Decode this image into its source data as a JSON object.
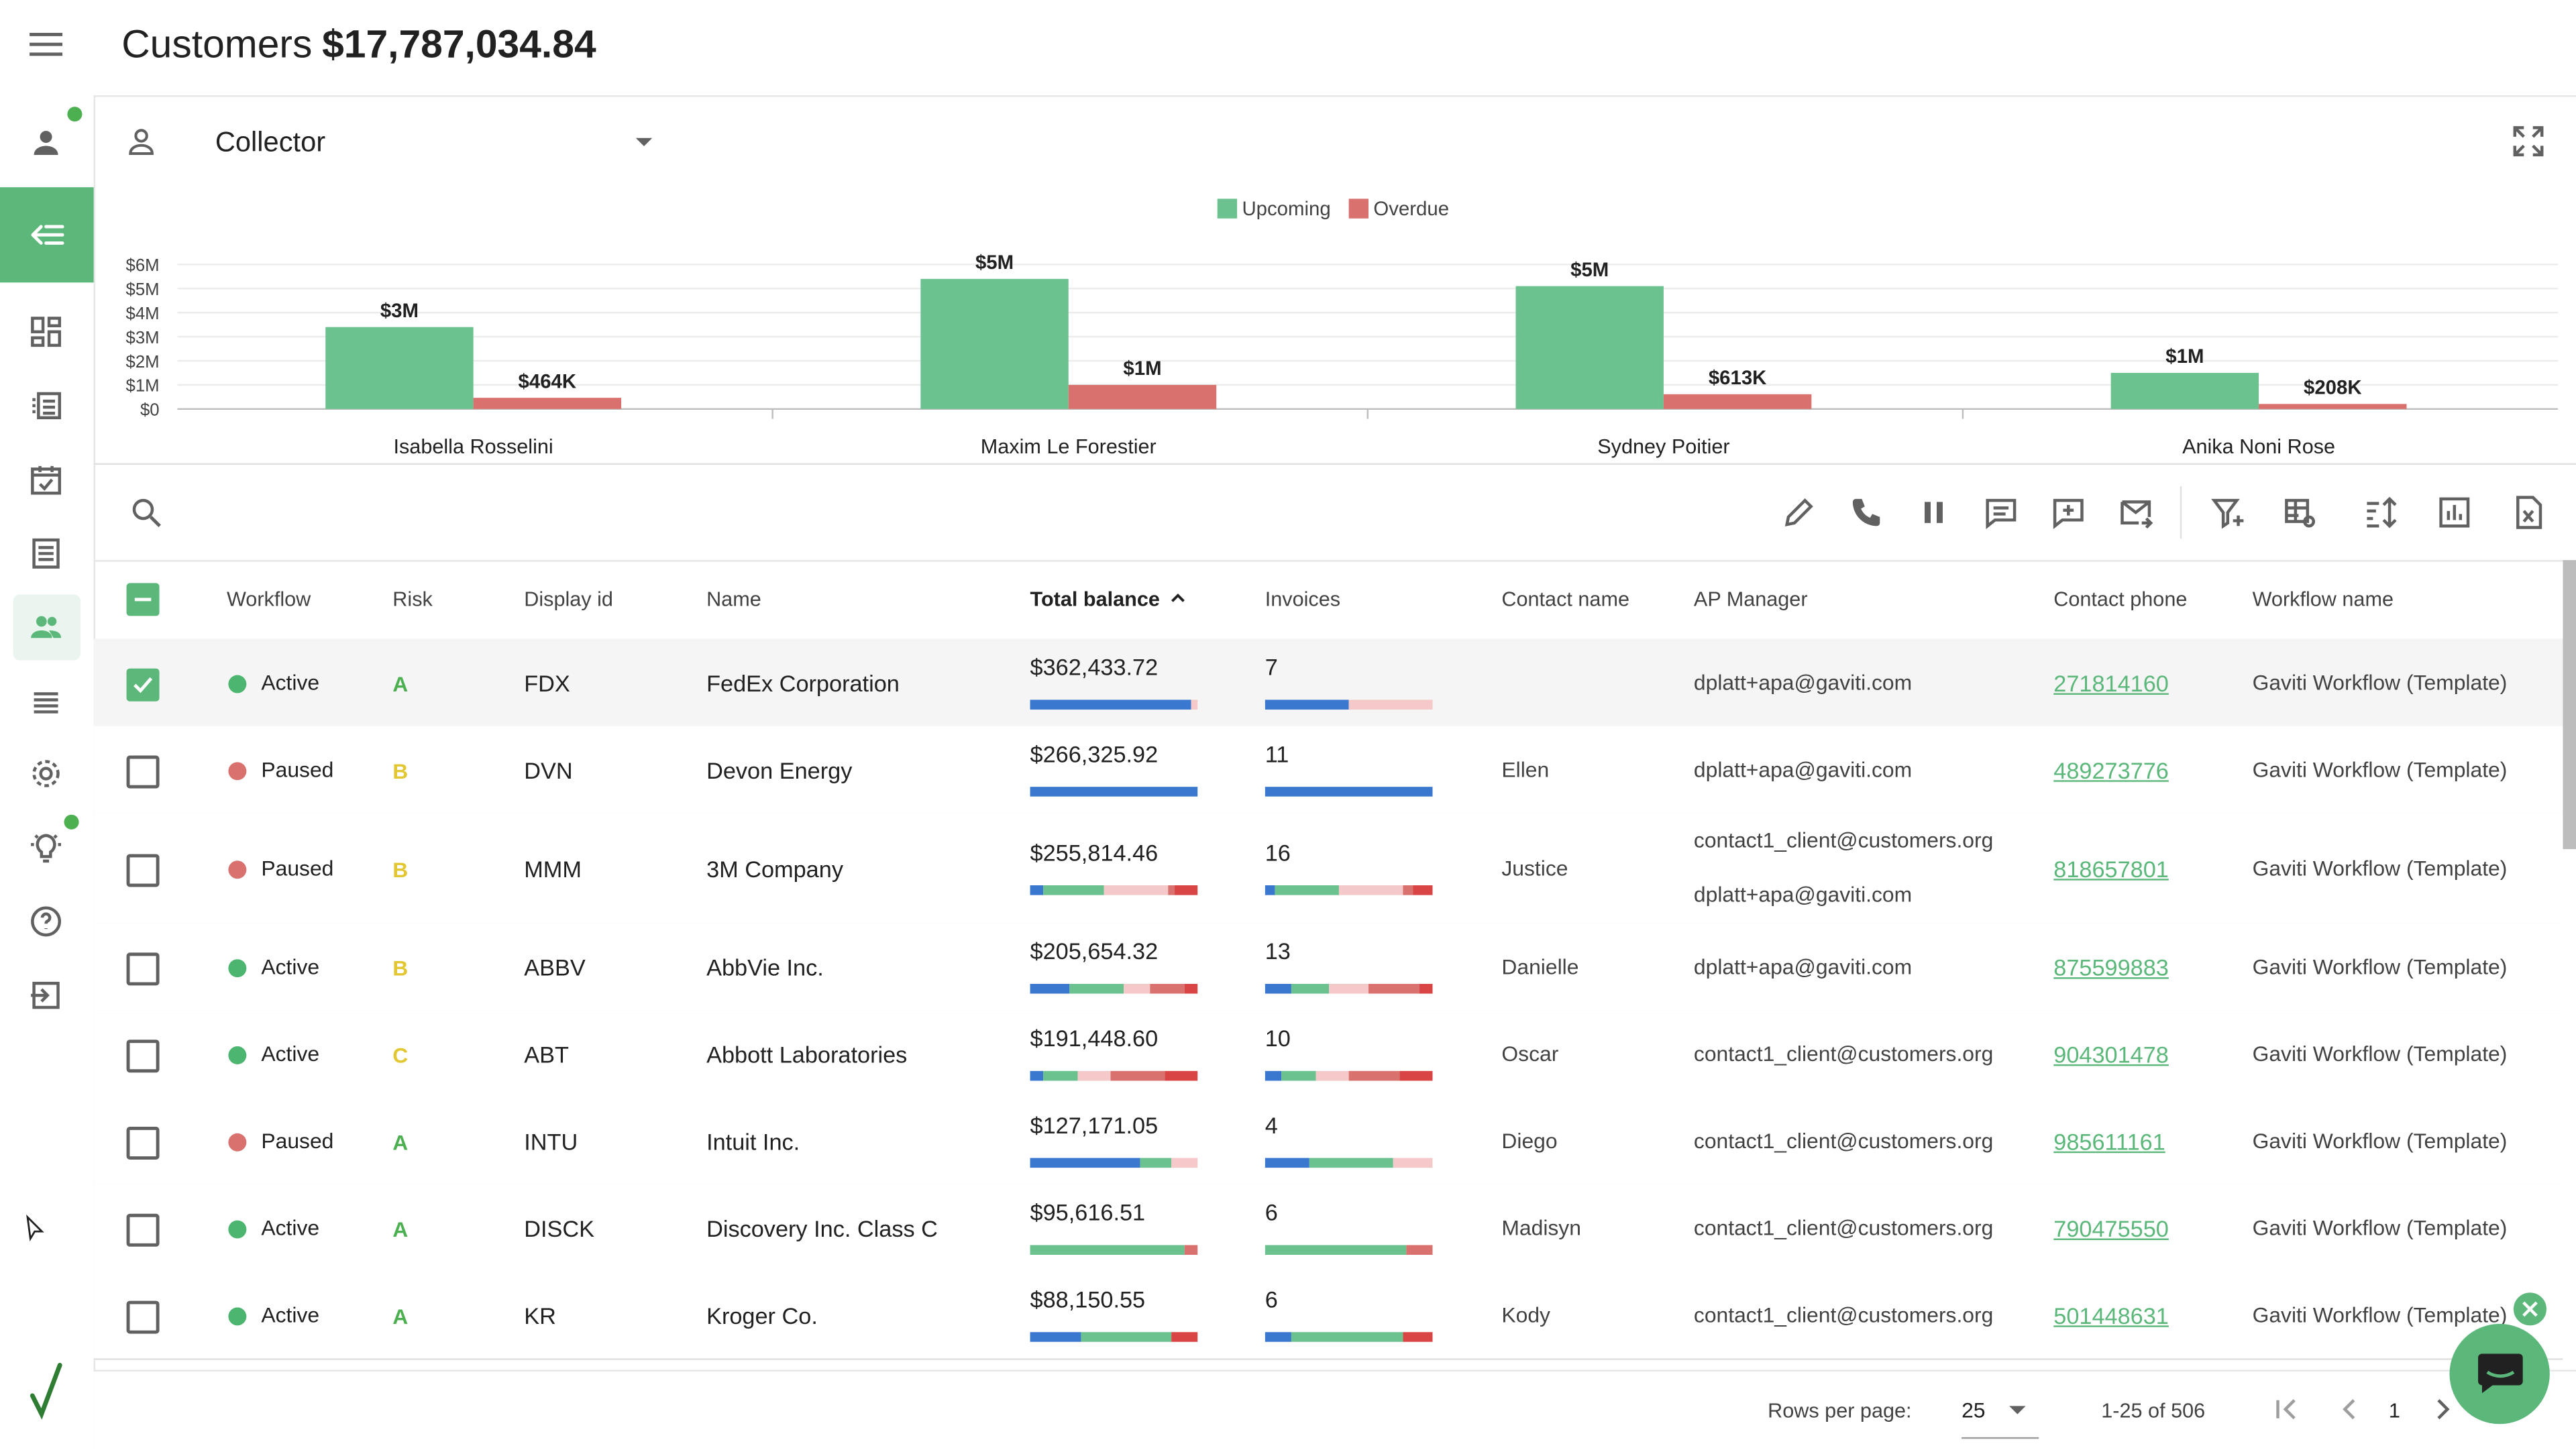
{
  "header": {
    "title": "Customers",
    "total": "$17,787,034.84"
  },
  "colors": {
    "accent": "#5cb87a",
    "upcoming": "#6cc28f",
    "overdue": "#d9726e",
    "blue": "#3a78d0",
    "red": "#d94545",
    "pink": "#f5c9c9",
    "yellow": "#e2c733"
  },
  "collector": {
    "label": "Collector"
  },
  "chart_data": {
    "type": "bar",
    "categories": [
      "Isabella Rosselini",
      "Maxim Le Forestier",
      "Sydney Poitier",
      "Anika Noni Rose"
    ],
    "series": [
      {
        "name": "Upcoming",
        "values": [
          3400000,
          5400000,
          5100000,
          1500000
        ],
        "labels": [
          "$3M",
          "$5M",
          "$5M",
          "$1M"
        ]
      },
      {
        "name": "Overdue",
        "values": [
          464000,
          1000000,
          613000,
          208000
        ],
        "labels": [
          "$464K",
          "$1M",
          "$613K",
          "$208K"
        ]
      }
    ],
    "yticks": [
      "$0",
      "$1M",
      "$2M",
      "$3M",
      "$4M",
      "$5M",
      "$6M"
    ],
    "ylim": [
      0,
      6000000
    ],
    "legend": "top-center",
    "grid": true
  },
  "table": {
    "columns": {
      "workflow": "Workflow",
      "risk": "Risk",
      "display_id": "Display id",
      "name": "Name",
      "total_balance": "Total balance",
      "invoices": "Invoices",
      "contact_name": "Contact name",
      "ap_manager": "AP Manager",
      "contact_phone": "Contact phone",
      "workflow_name": "Workflow name"
    },
    "rows": [
      {
        "checked": true,
        "workflow": "Active",
        "wf_color": "#4cb56f",
        "risk": "A",
        "risk_color": "#4caf50",
        "id": "FDX",
        "name": "FedEx Corporation",
        "balance": "$362,433.72",
        "bal_bar": [
          [
            "blue",
            96
          ],
          [
            "pink",
            4
          ]
        ],
        "invoices": "7",
        "inv_bar": [
          [
            "blue",
            50
          ],
          [
            "pink",
            50
          ]
        ],
        "contact": "",
        "ap": [
          "dplatt+apa@gaviti.com"
        ],
        "phone": "271814160",
        "wfname": "Gaviti Workflow (Template)"
      },
      {
        "checked": false,
        "workflow": "Paused",
        "wf_color": "#d9726e",
        "risk": "B",
        "risk_color": "#e2c733",
        "id": "DVN",
        "name": "Devon Energy",
        "balance": "$266,325.92",
        "bal_bar": [
          [
            "blue",
            100
          ]
        ],
        "invoices": "11",
        "inv_bar": [
          [
            "blue",
            100
          ]
        ],
        "contact": "Ellen",
        "ap": [
          "dplatt+apa@gaviti.com"
        ],
        "phone": "489273776",
        "wfname": "Gaviti Workflow (Template)"
      },
      {
        "checked": false,
        "workflow": "Paused",
        "wf_color": "#d9726e",
        "risk": "B",
        "risk_color": "#e2c733",
        "id": "MMM",
        "name": "3M Company",
        "balance": "$255,814.46",
        "bal_bar": [
          [
            "blue",
            8
          ],
          [
            "green",
            36
          ],
          [
            "pink",
            38
          ],
          [
            "rose",
            4
          ],
          [
            "red",
            14
          ]
        ],
        "invoices": "16",
        "inv_bar": [
          [
            "blue",
            6
          ],
          [
            "green",
            38
          ],
          [
            "pink",
            38
          ],
          [
            "rose",
            6
          ],
          [
            "red",
            12
          ]
        ],
        "contact": "Justice",
        "ap": [
          "contact1_client@customers.org",
          "dplatt+apa@gaviti.com"
        ],
        "phone": "818657801",
        "wfname": "Gaviti Workflow (Template)"
      },
      {
        "checked": false,
        "workflow": "Active",
        "wf_color": "#4cb56f",
        "risk": "B",
        "risk_color": "#e2c733",
        "id": "ABBV",
        "name": "AbbVie Inc.",
        "balance": "$205,654.32",
        "bal_bar": [
          [
            "blue",
            24
          ],
          [
            "green",
            32
          ],
          [
            "pink",
            16
          ],
          [
            "rose",
            20
          ],
          [
            "red",
            8
          ]
        ],
        "invoices": "13",
        "inv_bar": [
          [
            "blue",
            16
          ],
          [
            "green",
            22
          ],
          [
            "pink",
            24
          ],
          [
            "rose",
            30
          ],
          [
            "red",
            8
          ]
        ],
        "contact": "Danielle",
        "ap": [
          "dplatt+apa@gaviti.com"
        ],
        "phone": "875599883",
        "wfname": "Gaviti Workflow (Template)"
      },
      {
        "checked": false,
        "workflow": "Active",
        "wf_color": "#4cb56f",
        "risk": "C",
        "risk_color": "#e2c733",
        "id": "ABT",
        "name": "Abbott Laboratories",
        "balance": "$191,448.60",
        "bal_bar": [
          [
            "blue",
            8
          ],
          [
            "green",
            20
          ],
          [
            "pink",
            20
          ],
          [
            "rose",
            32
          ],
          [
            "red",
            20
          ]
        ],
        "invoices": "10",
        "inv_bar": [
          [
            "blue",
            10
          ],
          [
            "green",
            20
          ],
          [
            "pink",
            20
          ],
          [
            "rose",
            30
          ],
          [
            "red",
            20
          ]
        ],
        "contact": "Oscar",
        "ap": [
          "contact1_client@customers.org"
        ],
        "phone": "904301478",
        "wfname": "Gaviti Workflow (Template)"
      },
      {
        "checked": false,
        "workflow": "Paused",
        "wf_color": "#d9726e",
        "risk": "A",
        "risk_color": "#4caf50",
        "id": "INTU",
        "name": "Intuit Inc.",
        "balance": "$127,171.05",
        "bal_bar": [
          [
            "blue",
            66
          ],
          [
            "green",
            18
          ],
          [
            "pink",
            16
          ]
        ],
        "invoices": "4",
        "inv_bar": [
          [
            "blue",
            26
          ],
          [
            "green",
            50
          ],
          [
            "pink",
            24
          ]
        ],
        "contact": "Diego",
        "ap": [
          "contact1_client@customers.org"
        ],
        "phone": "985611161",
        "wfname": "Gaviti Workflow (Template)"
      },
      {
        "checked": false,
        "workflow": "Active",
        "wf_color": "#4cb56f",
        "risk": "A",
        "risk_color": "#4caf50",
        "id": "DISCK",
        "name": "Discovery Inc. Class C",
        "balance": "$95,616.51",
        "bal_bar": [
          [
            "green",
            92
          ],
          [
            "rose",
            8
          ]
        ],
        "invoices": "6",
        "inv_bar": [
          [
            "green",
            84
          ],
          [
            "rose",
            16
          ]
        ],
        "contact": "Madisyn",
        "ap": [
          "contact1_client@customers.org"
        ],
        "phone": "790475550",
        "wfname": "Gaviti Workflow (Template)"
      },
      {
        "checked": false,
        "workflow": "Active",
        "wf_color": "#4cb56f",
        "risk": "A",
        "risk_color": "#4caf50",
        "id": "KR",
        "name": "Kroger Co.",
        "balance": "$88,150.55",
        "bal_bar": [
          [
            "blue",
            30
          ],
          [
            "green",
            54
          ],
          [
            "red",
            16
          ]
        ],
        "invoices": "6",
        "inv_bar": [
          [
            "blue",
            16
          ],
          [
            "green",
            66
          ],
          [
            "red",
            18
          ]
        ],
        "contact": "Kody",
        "ap": [
          "contact1_client@customers.org"
        ],
        "phone": "501448631",
        "wfname": "Gaviti Workflow (Template)"
      }
    ]
  },
  "pagination": {
    "rows_label": "Rows per page:",
    "rows_value": "25",
    "range": "1-25 of 506",
    "page": "1"
  }
}
